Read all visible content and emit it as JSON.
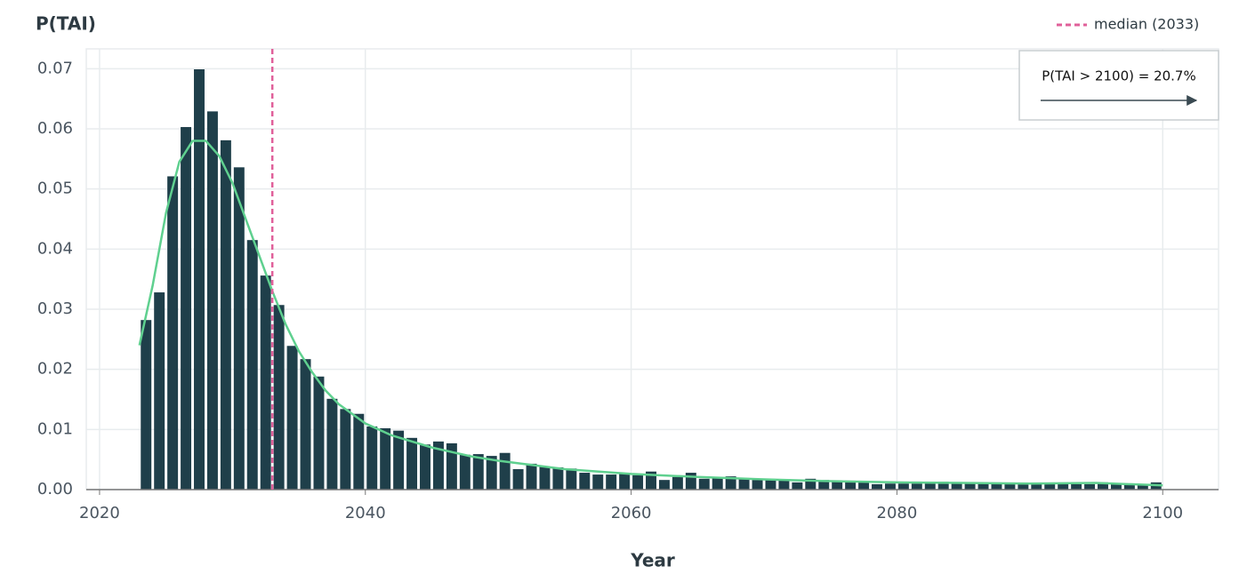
{
  "chart_data": {
    "type": "histogram",
    "title": "P(TAI)",
    "x_label": "Year",
    "bins": [
      2023,
      2024,
      2025,
      2026,
      2027,
      2028,
      2029,
      2030,
      2031,
      2032,
      2033,
      2034,
      2035,
      2036,
      2037,
      2038,
      2039,
      2040,
      2041,
      2042,
      2043,
      2044,
      2045,
      2046,
      2047,
      2048,
      2049,
      2050,
      2051,
      2052,
      2053,
      2054,
      2055,
      2056,
      2057,
      2058,
      2059,
      2060,
      2061,
      2062,
      2063,
      2064,
      2065,
      2066,
      2067,
      2068,
      2069,
      2070,
      2071,
      2072,
      2073,
      2074,
      2075,
      2076,
      2077,
      2078,
      2079,
      2080,
      2081,
      2082,
      2083,
      2084,
      2085,
      2086,
      2087,
      2088,
      2089,
      2090,
      2091,
      2092,
      2093,
      2094,
      2095,
      2096,
      2097,
      2098,
      2099,
      2100
    ],
    "values": [
      0.0282,
      0.0328,
      0.0521,
      0.0603,
      0.0699,
      0.0629,
      0.0581,
      0.0536,
      0.0415,
      0.0356,
      0.0307,
      0.0239,
      0.0217,
      0.0188,
      0.0151,
      0.0134,
      0.0126,
      0.0105,
      0.0102,
      0.0098,
      0.0086,
      0.0075,
      0.008,
      0.0077,
      0.0058,
      0.0059,
      0.0056,
      0.0061,
      0.0034,
      0.0043,
      0.0038,
      0.0037,
      0.0035,
      0.0028,
      0.0025,
      0.0025,
      0.0027,
      0.0024,
      0.003,
      0.0016,
      0.0021,
      0.0028,
      0.0018,
      0.0019,
      0.0022,
      0.0018,
      0.0016,
      0.0016,
      0.0015,
      0.0012,
      0.0018,
      0.0016,
      0.0015,
      0.0013,
      0.0013,
      0.0009,
      0.001,
      0.001,
      0.001,
      0.0011,
      0.0013,
      0.0012,
      0.001,
      0.001,
      0.001,
      0.0011,
      0.0009,
      0.0009,
      0.0009,
      0.0009,
      0.0009,
      0.0009,
      0.0012,
      0.001,
      0.0009,
      0.0009,
      0.0012
    ],
    "color": "#1f3f4a",
    "curve": {
      "color": "#5fd08f",
      "x": [
        2023,
        2024,
        2025,
        2026,
        2027,
        2028,
        2029,
        2030,
        2031,
        2032,
        2033,
        2034,
        2035,
        2036,
        2037,
        2038,
        2040,
        2042,
        2045,
        2048,
        2050,
        2055,
        2060,
        2065,
        2070,
        2075,
        2080,
        2085,
        2090,
        2095,
        2100
      ],
      "values": [
        0.024,
        0.034,
        0.046,
        0.0545,
        0.058,
        0.058,
        0.0555,
        0.051,
        0.045,
        0.039,
        0.033,
        0.0275,
        0.023,
        0.0195,
        0.0165,
        0.0142,
        0.011,
        0.009,
        0.007,
        0.0055,
        0.0048,
        0.0034,
        0.0026,
        0.0021,
        0.0017,
        0.0014,
        0.0012,
        0.0011,
        0.001,
        0.0011,
        0.0007
      ]
    },
    "median": {
      "value": 2033,
      "label": "median (2033)",
      "color": "#e0609a"
    },
    "annotation": "P(TAI > 2100) = 20.7%",
    "xlim": [
      2019,
      2104.2
    ],
    "ylim": [
      0,
      0.0733
    ],
    "xticks": [
      2020,
      2040,
      2060,
      2080,
      2100
    ],
    "yticks": [
      {
        "value": 0,
        "label": "0.00"
      },
      0.01,
      0.02,
      0.03,
      0.04,
      0.05,
      0.06,
      0.07
    ],
    "grid": true
  }
}
